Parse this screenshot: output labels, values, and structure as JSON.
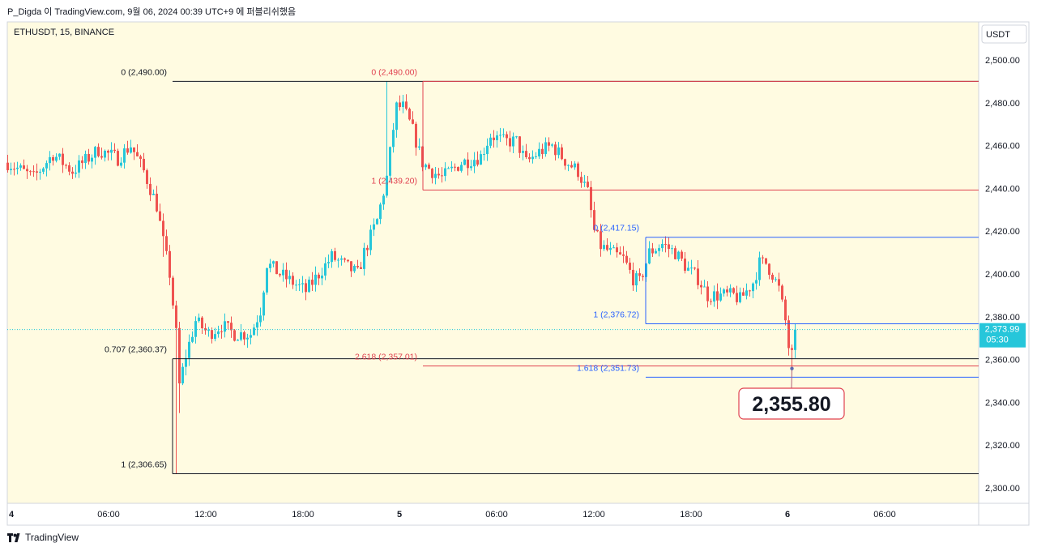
{
  "header": {
    "caption": "P_Digda 이 TradingView.com, 9월 06, 2024 00:39 UTC+9 에 퍼블리쉬했음"
  },
  "chart_meta": {
    "symbol_label": "ETHUSDT, 15, BINANCE",
    "currency_label": "USDT",
    "last_price_label": "2,373.99",
    "countdown_label": "05:30",
    "callout_label": "2,355.80",
    "footer_brand": "TradingView",
    "colors": {
      "background": "#fffbe1",
      "up": "#26c6da",
      "down": "#ef5350",
      "fib_black": "#131722",
      "fib_red": "#e0414f",
      "fib_blue": "#2962ff",
      "price_tag": "#26c6da"
    },
    "icons": {
      "footer": "tradingview-logo-icon"
    }
  },
  "chart_data": {
    "type": "candlestick",
    "title": "ETHUSDT, 15, BINANCE",
    "ylabel": "USDT",
    "ylim": [
      2295,
      2507
    ],
    "y_ticks": [
      "2,300.00",
      "2,320.00",
      "2,340.00",
      "2,360.00",
      "2,380.00",
      "2,400.00",
      "2,420.00",
      "2,440.00",
      "2,460.00",
      "2,480.00",
      "2,500.00"
    ],
    "x_ticks": [
      "4",
      "06:00",
      "12:00",
      "18:00",
      "5",
      "06:00",
      "12:00",
      "18:00",
      "6",
      "06:00"
    ],
    "grid": false,
    "last_price": 2373.99,
    "callout_price": 2355.8,
    "fib_levels": [
      {
        "group": "black",
        "label": "0 (2,490.00)",
        "price": 2490.0
      },
      {
        "group": "black",
        "label": "0.707 (2,360.37)",
        "price": 2360.37
      },
      {
        "group": "black",
        "label": "1 (2,306.65)",
        "price": 2306.65
      },
      {
        "group": "red",
        "label": "0 (2,490.00)",
        "price": 2490.0
      },
      {
        "group": "red",
        "label": "1 (2,439.20)",
        "price": 2439.2
      },
      {
        "group": "red",
        "label": "2.618 (2,357.01)",
        "price": 2357.01
      },
      {
        "group": "blue",
        "label": "0 (2,417.15)",
        "price": 2417.15
      },
      {
        "group": "blue",
        "label": "1 (2,376.72)",
        "price": 2376.72
      },
      {
        "group": "blue",
        "label": "1.618 (2,351.73)",
        "price": 2351.73
      }
    ],
    "waypoints": [
      [
        0,
        2452
      ],
      [
        8,
        2445
      ],
      [
        14,
        2456
      ],
      [
        20,
        2448
      ],
      [
        28,
        2458
      ],
      [
        34,
        2454
      ],
      [
        38,
        2460
      ],
      [
        42,
        2448
      ],
      [
        46,
        2432
      ],
      [
        48,
        2415
      ],
      [
        50,
        2400
      ],
      [
        52,
        2372
      ],
      [
        53,
        2348
      ],
      [
        55,
        2362
      ],
      [
        58,
        2378
      ],
      [
        62,
        2372
      ],
      [
        66,
        2376
      ],
      [
        70,
        2372
      ],
      [
        75,
        2372
      ],
      [
        78,
        2383
      ],
      [
        80,
        2405
      ],
      [
        84,
        2400
      ],
      [
        88,
        2396
      ],
      [
        92,
        2392
      ],
      [
        96,
        2400
      ],
      [
        100,
        2408
      ],
      [
        105,
        2403
      ],
      [
        108,
        2400
      ],
      [
        110,
        2410
      ],
      [
        114,
        2425
      ],
      [
        117,
        2445
      ],
      [
        119,
        2468
      ],
      [
        120,
        2478
      ],
      [
        122,
        2478
      ],
      [
        125,
        2467
      ],
      [
        128,
        2452
      ],
      [
        131,
        2448
      ],
      [
        134,
        2445
      ],
      [
        140,
        2452
      ],
      [
        146,
        2455
      ],
      [
        149,
        2465
      ],
      [
        153,
        2462
      ],
      [
        155,
        2462
      ],
      [
        157,
        2462
      ],
      [
        160,
        2452
      ],
      [
        164,
        2457
      ],
      [
        168,
        2460
      ],
      [
        172,
        2453
      ],
      [
        176,
        2448
      ],
      [
        179,
        2438
      ],
      [
        181,
        2420
      ],
      [
        183,
        2413
      ],
      [
        186,
        2410
      ],
      [
        190,
        2407
      ],
      [
        193,
        2398
      ],
      [
        195,
        2396
      ],
      [
        198,
        2410
      ],
      [
        202,
        2414
      ],
      [
        206,
        2410
      ],
      [
        210,
        2402
      ],
      [
        213,
        2398
      ],
      [
        216,
        2390
      ],
      [
        220,
        2390
      ],
      [
        224,
        2390
      ],
      [
        226,
        2388
      ],
      [
        230,
        2396
      ],
      [
        232,
        2405
      ],
      [
        234,
        2405
      ],
      [
        236,
        2400
      ],
      [
        238,
        2393
      ],
      [
        240,
        2378
      ],
      [
        241,
        2366
      ],
      [
        242,
        2362
      ],
      [
        243,
        2374
      ]
    ]
  }
}
